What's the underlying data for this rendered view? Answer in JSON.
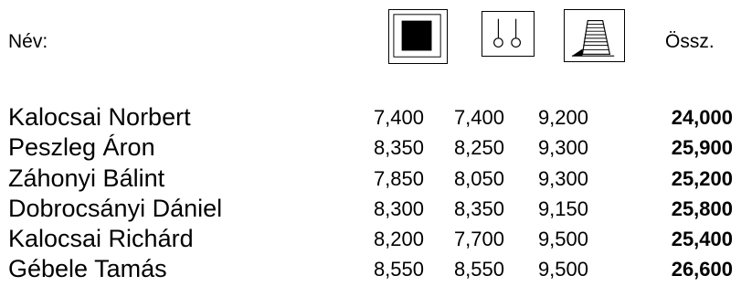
{
  "header": {
    "name_label": "Név:",
    "total_label": "Össz.",
    "apparatus_icons": [
      "pommel-horse-icon",
      "rings-icon",
      "vault-icon"
    ]
  },
  "results": [
    {
      "name": "Kalocsai Norbert",
      "scores": [
        "7,400",
        "7,400",
        "9,200"
      ],
      "total": "24,000"
    },
    {
      "name": "Peszleg Áron",
      "scores": [
        "8,350",
        "8,250",
        "9,300"
      ],
      "total": "25,900"
    },
    {
      "name": "Záhonyi Bálint",
      "scores": [
        "7,850",
        "8,050",
        "9,300"
      ],
      "total": "25,200"
    },
    {
      "name": "Dobrocsányi Dániel",
      "scores": [
        "8,300",
        "8,350",
        "9,150"
      ],
      "total": "25,800"
    },
    {
      "name": "Kalocsai Richárd",
      "scores": [
        "8,200",
        "7,700",
        "9,500"
      ],
      "total": "25,400"
    },
    {
      "name": "Gébele Tamás",
      "scores": [
        "8,550",
        "8,550",
        "9,500"
      ],
      "total": "26,600"
    }
  ]
}
